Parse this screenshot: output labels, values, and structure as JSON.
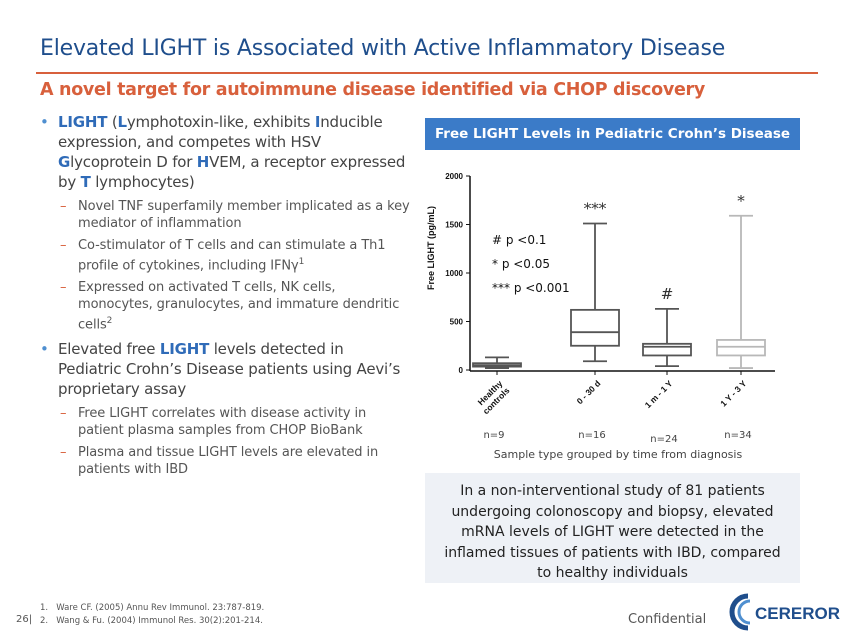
{
  "slide": {
    "title": "Elevated LIGHT is Associated with Active Inflammatory Disease",
    "subtitle": "A novel target for autoimmune disease identified via CHOP discovery",
    "page_number": "26|",
    "confidential": "Confidential"
  },
  "bullets": {
    "b1": {
      "s1": "LIGHT",
      "s2": " (",
      "s3": "L",
      "s4": "ymphotoxin-like, exhibits ",
      "s5": "I",
      "s6": "nducible expression, and competes with HSV ",
      "s7": "G",
      "s8": "lycoprotein D for ",
      "s9": "H",
      "s10": "VEM, a receptor expressed by ",
      "s11": "T",
      "s12": " lymphocytes)"
    },
    "b1_sub": [
      {
        "text": "Novel TNF superfamily member implicated as a key mediator of inflammation",
        "sup": ""
      },
      {
        "text": "Co-stimulator of T cells and can stimulate a Th1 profile of cytokines, including IFNγ",
        "sup": "1"
      },
      {
        "text": "Expressed on activated T cells, NK cells, monocytes, granulocytes, and immature dendritic cells",
        "sup": "2"
      }
    ],
    "b2": {
      "s1": "Elevated free ",
      "s2": "LIGHT",
      "s3": " levels detected in Pediatric Crohn’s Disease patients using Aevi’s proprietary assay"
    },
    "b2_sub": [
      {
        "text": "Free LIGHT correlates with disease activity in patient plasma samples from CHOP BioBank"
      },
      {
        "text": "Plasma and tissue LIGHT levels are elevated in patients with IBD"
      }
    ]
  },
  "chart_header": "Free LIGHT Levels in Pediatric Crohn’s Disease",
  "chart_data": {
    "type": "boxplot",
    "ylabel": "Free LIGHT (pg/mL)",
    "xlabel": "Sample type grouped by time from diagnosis",
    "ylim": [
      0,
      2000
    ],
    "yticks": [
      "0",
      "500",
      "1000",
      "1500",
      "2000"
    ],
    "ytick_values": [
      0,
      500,
      1000,
      1500,
      2000
    ],
    "categories": [
      "Healthy controls",
      "0 - 30 d",
      "1 m - 1 Y",
      "1 Y - 3 Y"
    ],
    "category_labels": [
      [
        "Healthy",
        "controls"
      ],
      [
        "0 - 30 d"
      ],
      [
        "1 m - 1 Y"
      ],
      [
        "1 Y - 3 Y"
      ]
    ],
    "n_labels": [
      "n=9",
      "n=16",
      "n=24",
      "n=34"
    ],
    "significance": [
      "",
      "***",
      "#",
      "*"
    ],
    "boxes": [
      {
        "min": 20,
        "q1": 35,
        "median": 50,
        "q3": 70,
        "max": 130,
        "color": "#555555"
      },
      {
        "min": 90,
        "q1": 250,
        "median": 390,
        "q3": 620,
        "max": 1510,
        "color": "#555555"
      },
      {
        "min": 40,
        "q1": 150,
        "median": 240,
        "q3": 270,
        "max": 630,
        "color": "#555555"
      },
      {
        "min": 20,
        "q1": 150,
        "median": 240,
        "q3": 310,
        "max": 1590,
        "color": "#b8b8b8"
      }
    ],
    "legend": [
      "# p <0.1",
      "* p <0.05",
      "*** p <0.001"
    ]
  },
  "note": "In a non-interventional study of 81 patients undergoing colonoscopy and biopsy, elevated mRNA levels of LIGHT were detected in the inflamed tissues of patients with IBD, compared to healthy individuals",
  "footnotes": [
    {
      "num": "1.",
      "text": "Ware CF. (2005) Annu Rev Immunol. 23:787-819."
    },
    {
      "num": "2.",
      "text": "Wang & Fu. (2004) Immunol Res. 30(2):201-214."
    }
  ],
  "logo": {
    "text": "CEREROR",
    "brand_color": "#1f4e8c",
    "accent_color": "#4f8fd0"
  }
}
